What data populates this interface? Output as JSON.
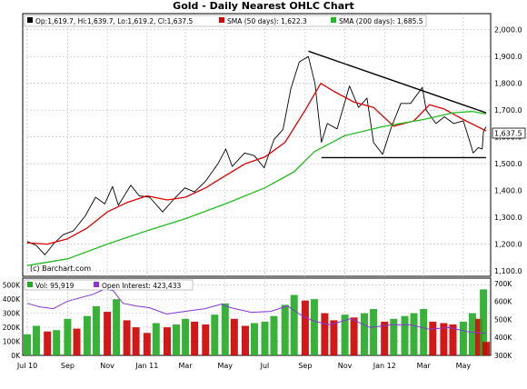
{
  "chart_data": [
    {
      "type": "line",
      "title": "Gold - Daily Nearest OHLC Chart",
      "legend_placement": "top",
      "legend": {
        "ohlc": "Op:1,619.7, Hi:1,639.7, Lo:1,619.2, Cl:1,637.5",
        "sma50": "SMA (50 days): 1,622.3",
        "sma200": "SMA (200 days): 1,685.5"
      },
      "last_price_label": "1,637.5",
      "watermark": "(c) Barchart.com",
      "ylim": [
        1080,
        2060
      ],
      "yticks": [
        1100,
        1200,
        1300,
        1400,
        1500,
        1600,
        1700,
        1800,
        1900,
        2000
      ],
      "ytick_labels": [
        "1,100.0",
        "1,200.0",
        "1,300.0",
        "1,400.0",
        "1,500.0",
        "1,600.0",
        "1,700.0",
        "1,800.0",
        "1,900.0",
        "2,000.0"
      ],
      "grid": true,
      "x_months": [
        {
          "date": "2010-07",
          "label": "Jul 10"
        },
        {
          "date": "2010-09",
          "label": "Sep"
        },
        {
          "date": "2010-11",
          "label": "Nov"
        },
        {
          "date": "2011-01",
          "label": "Jan 11"
        },
        {
          "date": "2011-03",
          "label": "Mar"
        },
        {
          "date": "2011-05",
          "label": "May"
        },
        {
          "date": "2011-07",
          "label": "Jul"
        },
        {
          "date": "2011-09",
          "label": "Sep"
        },
        {
          "date": "2011-11",
          "label": "Nov"
        },
        {
          "date": "2012-01",
          "label": "Jan 12"
        },
        {
          "date": "2012-03",
          "label": "Mar"
        },
        {
          "date": "2012-05",
          "label": "May"
        }
      ],
      "series": [
        {
          "name": "OHLC",
          "color": "#000000",
          "points": [
            [
              "2010-07-01",
              1210
            ],
            [
              "2010-07-15",
              1195
            ],
            [
              "2010-07-28",
              1160
            ],
            [
              "2010-08-10",
              1200
            ],
            [
              "2010-08-25",
              1235
            ],
            [
              "2010-09-10",
              1250
            ],
            [
              "2010-09-28",
              1305
            ],
            [
              "2010-10-14",
              1375
            ],
            [
              "2010-10-28",
              1350
            ],
            [
              "2010-11-09",
              1415
            ],
            [
              "2010-11-18",
              1345
            ],
            [
              "2010-12-07",
              1420
            ],
            [
              "2010-12-20",
              1380
            ],
            [
              "2011-01-05",
              1375
            ],
            [
              "2011-01-25",
              1320
            ],
            [
              "2011-02-10",
              1365
            ],
            [
              "2011-02-28",
              1410
            ],
            [
              "2011-03-15",
              1395
            ],
            [
              "2011-04-01",
              1435
            ],
            [
              "2011-04-20",
              1500
            ],
            [
              "2011-05-02",
              1555
            ],
            [
              "2011-05-12",
              1490
            ],
            [
              "2011-05-31",
              1540
            ],
            [
              "2011-06-15",
              1530
            ],
            [
              "2011-06-30",
              1485
            ],
            [
              "2011-07-15",
              1590
            ],
            [
              "2011-07-29",
              1628
            ],
            [
              "2011-08-10",
              1780
            ],
            [
              "2011-08-23",
              1880
            ],
            [
              "2011-09-06",
              1900
            ],
            [
              "2011-09-16",
              1800
            ],
            [
              "2011-09-26",
              1580
            ],
            [
              "2011-10-05",
              1650
            ],
            [
              "2011-10-20",
              1630
            ],
            [
              "2011-11-08",
              1790
            ],
            [
              "2011-11-22",
              1710
            ],
            [
              "2011-12-05",
              1745
            ],
            [
              "2011-12-15",
              1580
            ],
            [
              "2011-12-29",
              1535
            ],
            [
              "2012-01-12",
              1640
            ],
            [
              "2012-01-26",
              1725
            ],
            [
              "2012-02-10",
              1725
            ],
            [
              "2012-02-28",
              1785
            ],
            [
              "2012-03-05",
              1700
            ],
            [
              "2012-03-20",
              1650
            ],
            [
              "2012-04-02",
              1675
            ],
            [
              "2012-04-16",
              1650
            ],
            [
              "2012-05-01",
              1660
            ],
            [
              "2012-05-10",
              1590
            ],
            [
              "2012-05-16",
              1540
            ],
            [
              "2012-05-24",
              1560
            ],
            [
              "2012-05-30",
              1555
            ],
            [
              "2012-06-01",
              1620
            ],
            [
              "2012-06-05",
              1637.5
            ]
          ]
        },
        {
          "name": "SMA (50 days)",
          "color": "#dd0000",
          "points": [
            [
              "2010-07-01",
              1205
            ],
            [
              "2010-08-01",
              1200
            ],
            [
              "2010-09-01",
              1220
            ],
            [
              "2010-10-01",
              1260
            ],
            [
              "2010-11-01",
              1320
            ],
            [
              "2010-12-01",
              1355
            ],
            [
              "2011-01-01",
              1380
            ],
            [
              "2011-02-01",
              1365
            ],
            [
              "2011-03-01",
              1375
            ],
            [
              "2011-04-01",
              1410
            ],
            [
              "2011-05-01",
              1455
            ],
            [
              "2011-06-01",
              1500
            ],
            [
              "2011-07-01",
              1525
            ],
            [
              "2011-08-01",
              1580
            ],
            [
              "2011-09-01",
              1700
            ],
            [
              "2011-09-25",
              1800
            ],
            [
              "2011-10-15",
              1770
            ],
            [
              "2011-11-15",
              1730
            ],
            [
              "2011-12-15",
              1710
            ],
            [
              "2012-01-15",
              1640
            ],
            [
              "2012-02-15",
              1660
            ],
            [
              "2012-03-10",
              1720
            ],
            [
              "2012-04-01",
              1705
            ],
            [
              "2012-05-01",
              1665
            ],
            [
              "2012-06-05",
              1622.3
            ]
          ]
        },
        {
          "name": "SMA (200 days)",
          "color": "#22bb22",
          "points": [
            [
              "2010-07-01",
              1120
            ],
            [
              "2010-09-01",
              1145
            ],
            [
              "2010-11-01",
              1200
            ],
            [
              "2011-01-01",
              1250
            ],
            [
              "2011-03-01",
              1295
            ],
            [
              "2011-05-01",
              1350
            ],
            [
              "2011-07-01",
              1410
            ],
            [
              "2011-08-15",
              1470
            ],
            [
              "2011-09-15",
              1545
            ],
            [
              "2011-11-01",
              1605
            ],
            [
              "2012-01-01",
              1640
            ],
            [
              "2012-03-01",
              1665
            ],
            [
              "2012-04-15",
              1690
            ],
            [
              "2012-05-15",
              1695
            ],
            [
              "2012-06-05",
              1685.5
            ]
          ]
        },
        {
          "name": "Resistance trendline",
          "color": "#000000",
          "points": [
            [
              "2011-09-06",
              1920
            ],
            [
              "2012-06-05",
              1690
            ]
          ]
        },
        {
          "name": "Support line",
          "color": "#000000",
          "points": [
            [
              "2011-09-26",
              1523
            ],
            [
              "2012-06-05",
              1523
            ]
          ]
        }
      ]
    },
    {
      "type": "bar",
      "legend": {
        "volume": "Vol: 95,919",
        "open_interest": "Open Interest: 423,433"
      },
      "volume_ylim": [
        0,
        550000
      ],
      "volume_ticks": [
        "0K",
        "100K",
        "200K",
        "300K",
        "400K",
        "500K"
      ],
      "oi_ylim": [
        300000,
        730000
      ],
      "oi_ticks": [
        "300K",
        "400K",
        "500K",
        "600K",
        "700K"
      ],
      "grid": true,
      "volume_up_color": "#22aa22",
      "volume_down_color": "#cc0000",
      "oi_color": "#8833dd",
      "open_interest": [
        [
          "2010-07-01",
          590000
        ],
        [
          "2010-07-20",
          570000
        ],
        [
          "2010-08-10",
          560000
        ],
        [
          "2010-08-31",
          600000
        ],
        [
          "2010-09-20",
          620000
        ],
        [
          "2010-10-10",
          640000
        ],
        [
          "2010-10-28",
          670000
        ],
        [
          "2010-11-10",
          660000
        ],
        [
          "2010-11-25",
          590000
        ],
        [
          "2010-12-15",
          575000
        ],
        [
          "2011-01-05",
          565000
        ],
        [
          "2011-01-31",
          530000
        ],
        [
          "2011-02-28",
          545000
        ],
        [
          "2011-03-31",
          560000
        ],
        [
          "2011-04-25",
          585000
        ],
        [
          "2011-05-10",
          565000
        ],
        [
          "2011-06-10",
          540000
        ],
        [
          "2011-07-10",
          545000
        ],
        [
          "2011-08-05",
          575000
        ],
        [
          "2011-08-25",
          525000
        ],
        [
          "2011-09-15",
          490000
        ],
        [
          "2011-10-10",
          470000
        ],
        [
          "2011-11-10",
          505000
        ],
        [
          "2011-12-10",
          455000
        ],
        [
          "2012-01-10",
          470000
        ],
        [
          "2012-02-10",
          470000
        ],
        [
          "2012-03-10",
          445000
        ],
        [
          "2012-04-10",
          455000
        ],
        [
          "2012-05-10",
          430000
        ],
        [
          "2012-06-05",
          423433
        ]
      ],
      "volume": [
        [
          "2010-07-01",
          150000
        ],
        [
          "2010-07-15",
          210000
        ],
        [
          "2010-08-01",
          170000
        ],
        [
          "2010-08-15",
          180000
        ],
        [
          "2010-09-01",
          260000
        ],
        [
          "2010-09-15",
          190000
        ],
        [
          "2010-10-01",
          280000
        ],
        [
          "2010-10-15",
          350000
        ],
        [
          "2010-11-01",
          310000
        ],
        [
          "2010-11-15",
          400000
        ],
        [
          "2010-12-01",
          250000
        ],
        [
          "2010-12-15",
          200000
        ],
        [
          "2011-01-01",
          160000
        ],
        [
          "2011-01-15",
          230000
        ],
        [
          "2011-02-01",
          200000
        ],
        [
          "2011-02-15",
          220000
        ],
        [
          "2011-03-01",
          260000
        ],
        [
          "2011-03-15",
          240000
        ],
        [
          "2011-04-01",
          220000
        ],
        [
          "2011-04-15",
          290000
        ],
        [
          "2011-05-01",
          370000
        ],
        [
          "2011-05-15",
          260000
        ],
        [
          "2011-06-01",
          210000
        ],
        [
          "2011-06-15",
          230000
        ],
        [
          "2011-07-01",
          240000
        ],
        [
          "2011-07-15",
          280000
        ],
        [
          "2011-08-01",
          360000
        ],
        [
          "2011-08-15",
          430000
        ],
        [
          "2011-09-01",
          390000
        ],
        [
          "2011-09-15",
          400000
        ],
        [
          "2011-10-01",
          300000
        ],
        [
          "2011-10-15",
          250000
        ],
        [
          "2011-11-01",
          290000
        ],
        [
          "2011-11-15",
          270000
        ],
        [
          "2011-12-01",
          300000
        ],
        [
          "2011-12-15",
          330000
        ],
        [
          "2012-01-01",
          240000
        ],
        [
          "2012-01-15",
          260000
        ],
        [
          "2012-02-01",
          280000
        ],
        [
          "2012-02-15",
          300000
        ],
        [
          "2012-03-01",
          330000
        ],
        [
          "2012-03-15",
          240000
        ],
        [
          "2012-04-01",
          230000
        ],
        [
          "2012-04-15",
          220000
        ],
        [
          "2012-05-01",
          240000
        ],
        [
          "2012-05-15",
          300000
        ],
        [
          "2012-05-25",
          260000
        ],
        [
          "2012-06-01",
          470000
        ],
        [
          "2012-06-05",
          95919
        ]
      ]
    }
  ]
}
